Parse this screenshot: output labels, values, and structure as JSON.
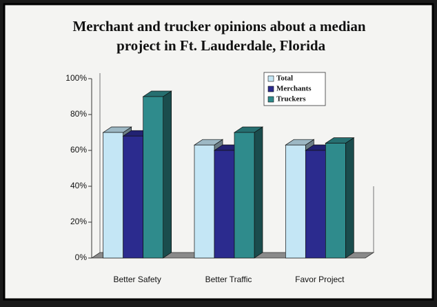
{
  "chart_data": {
    "type": "bar3d",
    "title": "Merchant and trucker opinions about a median project in Ft. Lauderdale, Florida",
    "categories": [
      "Better Safety",
      "Better Traffic",
      "Favor Project"
    ],
    "series": [
      {
        "name": "Total",
        "color": "#c4e6f5",
        "values": [
          70,
          63,
          63
        ]
      },
      {
        "name": "Merchants",
        "color": "#2b2b8e",
        "values": [
          68,
          60,
          60
        ]
      },
      {
        "name": "Truckers",
        "color": "#2f8b8c",
        "values": [
          90,
          70,
          64
        ]
      }
    ],
    "ylim": [
      0,
      100
    ],
    "yticks": [
      {
        "value": 0,
        "label": "0%"
      },
      {
        "value": 20,
        "label": "20%"
      },
      {
        "value": 40,
        "label": "40%"
      },
      {
        "value": 60,
        "label": "60%"
      },
      {
        "value": 80,
        "label": "80%"
      },
      {
        "value": 100,
        "label": "100%"
      }
    ],
    "grid": false,
    "legend": "top-right"
  }
}
